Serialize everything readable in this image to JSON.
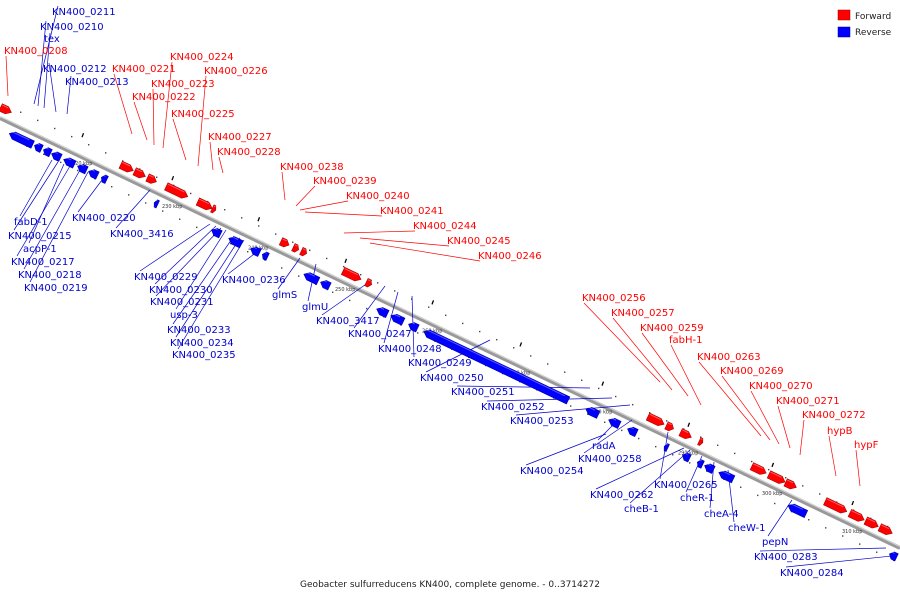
{
  "caption": "Geobacter sulfurreducens KN400, complete genome. - 0..3714272",
  "legend": [
    {
      "label": "Forward",
      "color": "#ff0000"
    },
    {
      "label": "Reverse",
      "color": "#0000ff"
    }
  ],
  "colors": {
    "forward": "#ff0000",
    "reverse": "#0000ff",
    "backbone": "#888888",
    "label_forward": "#ff0000",
    "label_reverse": "#0000cc"
  },
  "ticks": [
    "220 kbp",
    "230 kbp",
    "240 kbp",
    "250 kbp",
    "260 kbp",
    "270 kbp",
    "280 kbp",
    "290 kbp",
    "300 kbp",
    "310 kbp"
  ],
  "forward_genes": [
    "KN400_0208",
    "KN400_0221",
    "KN400_0222",
    "KN400_0223",
    "KN400_0224",
    "KN400_0225",
    "KN400_0226",
    "KN400_0227",
    "KN400_0228",
    "KN400_0238",
    "KN400_0239",
    "KN400_0240",
    "KN400_0241",
    "KN400_0244",
    "KN400_0245",
    "KN400_0246",
    "KN400_0256",
    "KN400_0257",
    "KN400_0259",
    "fabH-1",
    "KN400_0263",
    "KN400_0269",
    "KN400_0270",
    "KN400_0271",
    "KN400_0272",
    "hypB",
    "hypF"
  ],
  "reverse_genes": [
    "KN400_0211",
    "KN400_0210",
    "tex",
    "KN400_0212",
    "KN400_0213",
    "fabD-1",
    "KN400_0215",
    "acpP-1",
    "KN400_0217",
    "KN400_0218",
    "KN400_0219",
    "KN400_0220",
    "KN400_3416",
    "KN400_0229",
    "KN400_0230",
    "KN400_0231",
    "usp-3",
    "KN400_0233",
    "KN400_0234",
    "KN400_0235",
    "KN400_0236",
    "glmS",
    "glmU",
    "KN400_3417",
    "KN400_0247",
    "KN400_0248",
    "KN400_0249",
    "KN400_0250",
    "KN400_0251",
    "KN400_0252",
    "KN400_0253",
    "radA",
    "KN400_0254",
    "KN400_0258",
    "KN400_0265",
    "KN400_0262",
    "cheB-1",
    "cheR-1",
    "cheA-4",
    "cheW-1",
    "pepN",
    "KN400_0283",
    "KN400_0284"
  ]
}
